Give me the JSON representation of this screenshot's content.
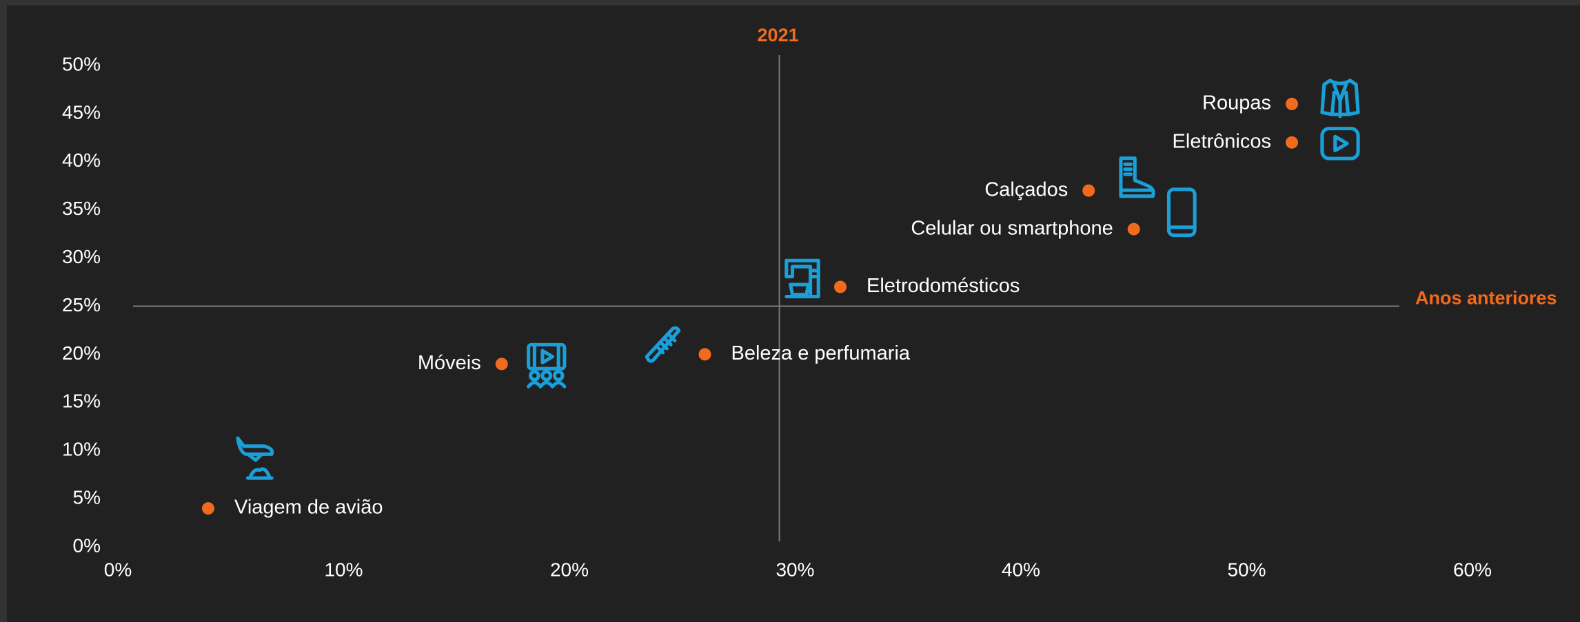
{
  "chart_data": {
    "type": "scatter",
    "labels": [
      "Roupas",
      "Eletrônicos",
      "Calçados",
      "Celular ou smartphone",
      "Eletrodomésticos",
      "Beleza e perfumaria",
      "Móveis",
      "Viagem de avião"
    ],
    "x": [
      52,
      52,
      43,
      45,
      32,
      26,
      17,
      4
    ],
    "values": [
      46,
      42,
      37,
      33,
      27,
      20,
      19,
      4
    ],
    "color": "#f26b1d",
    "xlim": [
      0,
      60
    ],
    "ylim": [
      0,
      50
    ],
    "xticks": [
      {
        "value": 0,
        "label": "0%"
      },
      {
        "value": 10,
        "label": "10%"
      },
      {
        "value": 20,
        "label": "20%"
      },
      {
        "value": 30,
        "label": "30%"
      },
      {
        "value": 40,
        "label": "40%"
      },
      {
        "value": 50,
        "label": "50%"
      },
      {
        "value": 60,
        "label": "60%"
      }
    ],
    "yticks": [
      {
        "value": 0,
        "label": "0%"
      },
      {
        "value": 5,
        "label": "5%"
      },
      {
        "value": 10,
        "label": "10%"
      },
      {
        "value": 15,
        "label": "15%"
      },
      {
        "value": 20,
        "label": "20%"
      },
      {
        "value": 25,
        "label": "25%"
      },
      {
        "value": 30,
        "label": "30%"
      },
      {
        "value": 35,
        "label": "35%"
      },
      {
        "value": 40,
        "label": "40%"
      },
      {
        "value": 45,
        "label": "45%"
      },
      {
        "value": 50,
        "label": "50%"
      }
    ],
    "vline": {
      "value": 29.3,
      "label": "2021"
    },
    "hline": {
      "value": 25,
      "label": "Anos anteriores"
    }
  }
}
